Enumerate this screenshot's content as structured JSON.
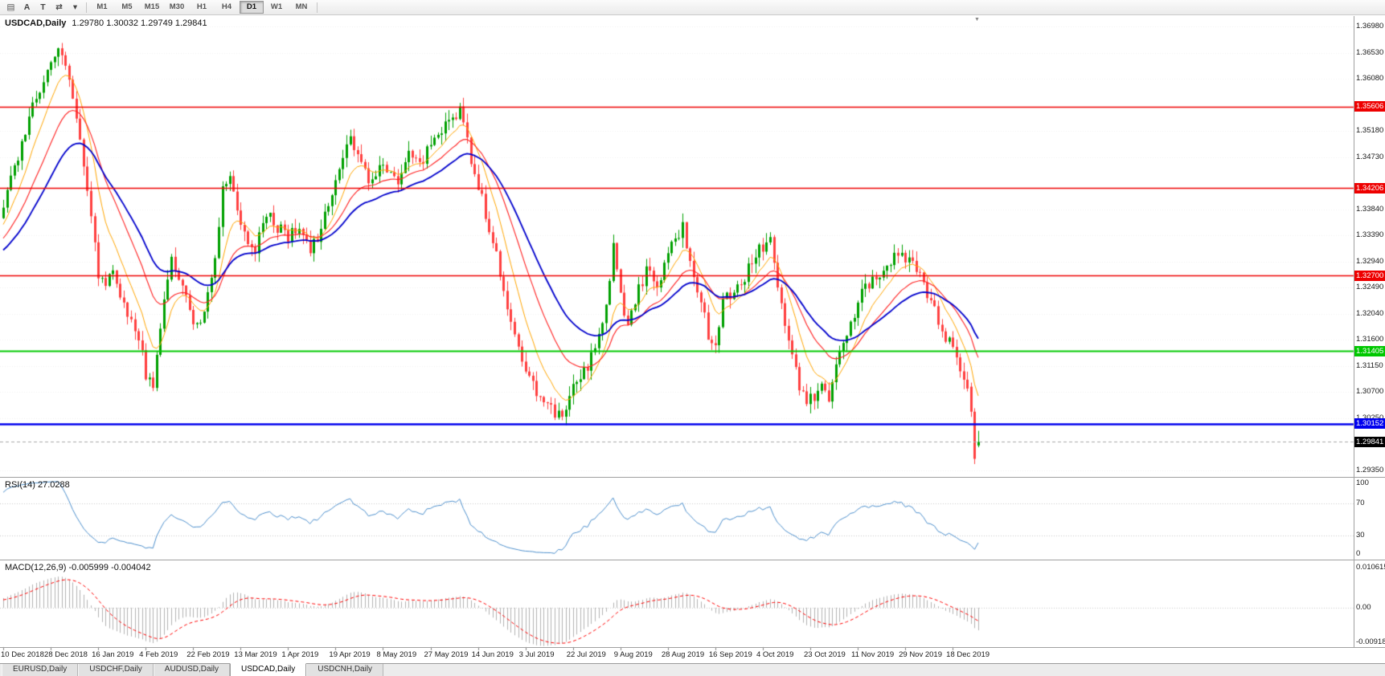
{
  "window": {
    "title": "USDCAD,Daily"
  },
  "toolbar": {
    "tool_icons": [
      {
        "name": "windows-list-icon",
        "glyph": "▤"
      },
      {
        "name": "annotate-a-icon",
        "glyph": "A"
      },
      {
        "name": "annotate-t-icon",
        "glyph": "T"
      },
      {
        "name": "chart-shift-icon",
        "glyph": "⇄"
      },
      {
        "name": "tools-caret-icon",
        "glyph": "▾"
      }
    ],
    "timeframes": [
      "M1",
      "M5",
      "M15",
      "M30",
      "H1",
      "H4",
      "D1",
      "W1",
      "MN"
    ],
    "active_timeframe": "D1"
  },
  "chart": {
    "title_symbol": "USDCAD,Daily",
    "title_ohlc": "1.29780 1.30032 1.29749 1.29841"
  },
  "chart_data": {
    "type": "candlestick",
    "symbol": "USDCAD",
    "period": "Daily",
    "ohlc": {
      "open": 1.2978,
      "high": 1.30032,
      "low": 1.29749,
      "close": 1.29841
    },
    "x_labels": [
      "10 Dec 2018",
      "28 Dec 2018",
      "16 Jan 2019",
      "4 Feb 2019",
      "22 Feb 2019",
      "13 Mar 2019",
      "1 Apr 2019",
      "19 Apr 2019",
      "8 May 2019",
      "27 May 2019",
      "14 Jun 2019",
      "3 Jul 2019",
      "22 Jul 2019",
      "9 Aug 2019",
      "28 Aug 2019",
      "16 Sep 2019",
      "4 Oct 2019",
      "23 Oct 2019",
      "11 Nov 2019",
      "29 Nov 2019",
      "18 Dec 2019"
    ],
    "candles_per_x_label": 13,
    "y_axis": {
      "top_price": 1.3698,
      "bottom_price": 1.2935,
      "ticks": [
        "1.36980",
        "1.36530",
        "1.36080",
        "1.35180",
        "1.34730",
        "1.33840",
        "1.33390",
        "1.32940",
        "1.32490",
        "1.32040",
        "1.31600",
        "1.31150",
        "1.30700",
        "1.30250",
        "1.29350"
      ]
    },
    "levels": [
      {
        "price": 1.35606,
        "label": "1.35606",
        "color": "#EE0000",
        "kind": "resistance",
        "width": 1.6
      },
      {
        "price": 1.34206,
        "label": "1.34206",
        "color": "#EE0000",
        "kind": "resistance",
        "width": 1.6
      },
      {
        "price": 1.327,
        "label": "1.32700",
        "color": "#EE0000",
        "kind": "resistance",
        "width": 1.6
      },
      {
        "price": 1.31405,
        "label": "1.31405",
        "color": "#00C800",
        "kind": "support",
        "width": 1.8
      },
      {
        "price": 1.30152,
        "label": "1.30152",
        "color": "#0000EE",
        "kind": "support",
        "width": 2.5
      }
    ],
    "current_price": {
      "price": 1.29841,
      "label": "1.29841",
      "tag_bg": "#000000"
    },
    "price_anchors": [
      [
        -60,
        1.318
      ],
      [
        -48,
        1.324
      ],
      [
        -36,
        1.33
      ],
      [
        -24,
        1.326
      ],
      [
        -12,
        1.331
      ],
      [
        -4,
        1.335
      ],
      [
        0,
        1.339
      ],
      [
        2,
        1.343
      ],
      [
        4,
        1.3465
      ],
      [
        6,
        1.352
      ],
      [
        8,
        1.356
      ],
      [
        10,
        1.359
      ],
      [
        12,
        1.3625
      ],
      [
        14,
        1.364
      ],
      [
        16,
        1.366
      ],
      [
        18,
        1.3615
      ],
      [
        20,
        1.354
      ],
      [
        22,
        1.345
      ],
      [
        24,
        1.338
      ],
      [
        26,
        1.327
      ],
      [
        28,
        1.3255
      ],
      [
        30,
        1.329
      ],
      [
        32,
        1.3225
      ],
      [
        34,
        1.32
      ],
      [
        36,
        1.3185
      ],
      [
        38,
        1.313
      ],
      [
        39,
        1.31
      ],
      [
        41,
        1.308
      ],
      [
        43,
        1.318
      ],
      [
        45,
        1.326
      ],
      [
        46,
        1.33
      ],
      [
        48,
        1.3255
      ],
      [
        50,
        1.323
      ],
      [
        52,
        1.318
      ],
      [
        55,
        1.32
      ],
      [
        58,
        1.33
      ],
      [
        60,
        1.342
      ],
      [
        62,
        1.345
      ],
      [
        64,
        1.339
      ],
      [
        66,
        1.334
      ],
      [
        69,
        1.331
      ],
      [
        72,
        1.338
      ],
      [
        75,
        1.335
      ],
      [
        78,
        1.334
      ],
      [
        81,
        1.336
      ],
      [
        84,
        1.331
      ],
      [
        87,
        1.335
      ],
      [
        90,
        1.342
      ],
      [
        93,
        1.347
      ],
      [
        95,
        1.35
      ],
      [
        97,
        1.347
      ],
      [
        100,
        1.3435
      ],
      [
        103,
        1.346
      ],
      [
        105,
        1.345
      ],
      [
        108,
        1.3435
      ],
      [
        111,
        1.3475
      ],
      [
        114,
        1.346
      ],
      [
        117,
        1.349
      ],
      [
        120,
        1.3515
      ],
      [
        123,
        1.354
      ],
      [
        125,
        1.3552
      ],
      [
        127,
        1.35
      ],
      [
        129,
        1.3445
      ],
      [
        131,
        1.34
      ],
      [
        134,
        1.333
      ],
      [
        137,
        1.324
      ],
      [
        140,
        1.318
      ],
      [
        143,
        1.311
      ],
      [
        146,
        1.3072
      ],
      [
        149,
        1.3058
      ],
      [
        151,
        1.3032
      ],
      [
        153,
        1.3022
      ],
      [
        155,
        1.3055
      ],
      [
        157,
        1.309
      ],
      [
        159,
        1.3105
      ],
      [
        161,
        1.313
      ],
      [
        163,
        1.317
      ],
      [
        165,
        1.322
      ],
      [
        167,
        1.332
      ],
      [
        169,
        1.323
      ],
      [
        171,
        1.319
      ],
      [
        173,
        1.323
      ],
      [
        176,
        1.328
      ],
      [
        179,
        1.325
      ],
      [
        181,
        1.329
      ],
      [
        184,
        1.333
      ],
      [
        186,
        1.336
      ],
      [
        188,
        1.329
      ],
      [
        191,
        1.322
      ],
      [
        193,
        1.317
      ],
      [
        195,
        1.316
      ],
      [
        197,
        1.322
      ],
      [
        200,
        1.325
      ],
      [
        203,
        1.327
      ],
      [
        206,
        1.331
      ],
      [
        208,
        1.332
      ],
      [
        210,
        1.333
      ],
      [
        212,
        1.326
      ],
      [
        214,
        1.319
      ],
      [
        216,
        1.313
      ],
      [
        218,
        1.308
      ],
      [
        220,
        1.3055
      ],
      [
        222,
        1.306
      ],
      [
        224,
        1.3085
      ],
      [
        226,
        1.3065
      ],
      [
        228,
        1.312
      ],
      [
        231,
        1.316
      ],
      [
        234,
        1.323
      ],
      [
        237,
        1.3255
      ],
      [
        240,
        1.3275
      ],
      [
        243,
        1.3295
      ],
      [
        246,
        1.3305
      ],
      [
        248,
        1.3295
      ],
      [
        250,
        1.3275
      ],
      [
        252,
        1.3255
      ],
      [
        254,
        1.3225
      ],
      [
        256,
        1.319
      ],
      [
        258,
        1.3165
      ],
      [
        260,
        1.3145
      ],
      [
        262,
        1.311
      ],
      [
        264,
        1.3078
      ],
      [
        265,
        1.3036
      ],
      [
        266,
        1.2955
      ],
      [
        267,
        1.29841
      ]
    ],
    "final_candles": [
      {
        "o": 1.3079,
        "h": 1.3086,
        "l": 1.3027,
        "c": 1.3036
      },
      {
        "o": 1.3036,
        "h": 1.3042,
        "l": 1.2946,
        "c": 1.2955
      },
      {
        "o": 1.2978,
        "h": 1.30032,
        "l": 1.29749,
        "c": 1.29841
      }
    ],
    "moving_averages": [
      {
        "name": "fast-ma",
        "period": 9,
        "type": "ema",
        "color": "#FFA500",
        "width": 1
      },
      {
        "name": "medium-ma",
        "period": 20,
        "type": "ema",
        "color": "#FF2020",
        "width": 1.1
      },
      {
        "name": "slow-ma",
        "period": 34,
        "type": "ema",
        "color": "#0000CC",
        "width": 1.8
      }
    ],
    "rsi": {
      "label": "RSI(14) 27.0288",
      "period": 14,
      "value": 27.0288,
      "color": "#4D8FCC",
      "levels": [
        70,
        30
      ],
      "axis_labels": [
        "100",
        "70",
        "30",
        "0"
      ]
    },
    "macd": {
      "label": "MACD(12,26,9) -0.005999 -0.004042",
      "fast": 12,
      "slow": 26,
      "signal_period": 9,
      "value": -0.005999,
      "signal_value": -0.004042,
      "histogram_color": "#B2B2B2",
      "signal_color": "#FF0000",
      "axis_labels": [
        "0.010615",
        "0.00",
        "-0.00918"
      ]
    },
    "colors": {
      "bull": "#00A000",
      "bear": "#FF4040",
      "background": "#FFFFFF",
      "grid": "#F0F0F0",
      "axis_text": "#1A1A1A"
    }
  },
  "tabs": {
    "items": [
      "EURUSD,Daily",
      "USDCHF,Daily",
      "AUDUSD,Daily",
      "USDCAD,Daily",
      "USDCNH,Daily"
    ],
    "active_index": 3
  }
}
